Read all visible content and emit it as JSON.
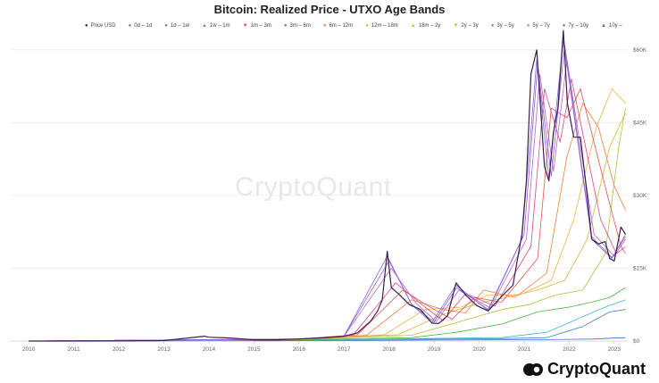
{
  "chart_data": {
    "type": "line",
    "title": "Bitcoin: Realized Price - UTXO Age Bands",
    "xlabel": "",
    "ylabel": "",
    "x_ticks": [
      "2010",
      "2011",
      "2012",
      "2013",
      "2014",
      "2015",
      "2016",
      "2017",
      "2018",
      "2019",
      "2020",
      "2021",
      "2022",
      "2023"
    ],
    "x_range": [
      2009.6,
      2023.3
    ],
    "ylim": [
      0,
      62000
    ],
    "y_ticks": [
      0,
      15000,
      30000,
      45000,
      60000
    ],
    "y_tick_labels": [
      "$0",
      "$15K",
      "$30K",
      "$45K",
      "$60K"
    ],
    "y_axis_side": "right",
    "grid": true,
    "legend_position": "top",
    "series": [
      {
        "name": "Price USD",
        "color": "#3b1d4e",
        "symbol": "●",
        "width": 1.2,
        "x": [
          2010,
          2011,
          2012,
          2013,
          2013.9,
          2014.0,
          2014.5,
          2015,
          2015.5,
          2016,
          2016.5,
          2017,
          2017.3,
          2017.6,
          2017.75,
          2017.85,
          2017.96,
          2018.05,
          2018.2,
          2018.45,
          2018.7,
          2018.95,
          2019.1,
          2019.3,
          2019.49,
          2019.7,
          2019.95,
          2020.2,
          2020.5,
          2020.75,
          2020.95,
          2021.05,
          2021.15,
          2021.28,
          2021.45,
          2021.55,
          2021.65,
          2021.75,
          2021.87,
          2021.96,
          2022.1,
          2022.25,
          2022.4,
          2022.5,
          2022.65,
          2022.8,
          2022.9,
          2023.0,
          2023.15,
          2023.25
        ],
        "y": [
          0,
          2,
          10,
          100,
          1000,
          800,
          600,
          250,
          260,
          420,
          650,
          1000,
          1700,
          4200,
          6300,
          8500,
          18500,
          11000,
          9800,
          7500,
          6500,
          3700,
          3600,
          5200,
          12000,
          9500,
          7300,
          6200,
          9200,
          11500,
          22000,
          33000,
          55000,
          60000,
          36000,
          33000,
          43000,
          48000,
          64000,
          49000,
          42000,
          42000,
          30000,
          21000,
          20000,
          20500,
          17000,
          16500,
          23500,
          22000
        ]
      },
      {
        "name": "0d – 1d",
        "color": "#7b6be0",
        "symbol": "●",
        "width": 0.8,
        "x": [
          2010,
          2016,
          2017,
          2017.96,
          2018.5,
          2018.95,
          2019.49,
          2020.2,
          2020.95,
          2021.28,
          2021.55,
          2021.87,
          2022.5,
          2022.95,
          2023.25
        ],
        "y": [
          0,
          420,
          1000,
          17500,
          7500,
          3800,
          11500,
          6300,
          21000,
          58000,
          33500,
          62000,
          21000,
          17000,
          22000
        ]
      },
      {
        "name": "1d – 1w",
        "color": "#9b59d0",
        "symbol": "●",
        "width": 0.8,
        "x": [
          2010,
          2016,
          2017,
          2018.0,
          2018.5,
          2019.0,
          2019.5,
          2020.2,
          2021.0,
          2021.3,
          2021.6,
          2021.9,
          2022.5,
          2022.95,
          2023.25
        ],
        "y": [
          0,
          420,
          1000,
          16500,
          7600,
          3900,
          11000,
          6500,
          22000,
          57000,
          34000,
          61000,
          21500,
          17200,
          21500
        ]
      },
      {
        "name": "1w – 1m",
        "color": "#b565c8",
        "symbol": "▲",
        "width": 0.8,
        "x": [
          2010,
          2016,
          2017,
          2018.05,
          2018.6,
          2019.05,
          2019.55,
          2020.25,
          2021.05,
          2021.35,
          2021.65,
          2021.95,
          2022.55,
          2023.0,
          2023.25
        ],
        "y": [
          0,
          410,
          950,
          15000,
          7800,
          4000,
          10500,
          6800,
          21000,
          55000,
          35000,
          58000,
          22000,
          17500,
          21000
        ]
      },
      {
        "name": "1m – 3m",
        "color": "#e0457b",
        "symbol": "▼",
        "width": 0.8,
        "x": [
          2010,
          2016,
          2017.2,
          2018.15,
          2018.8,
          2019.2,
          2019.7,
          2020.35,
          2021.15,
          2021.45,
          2021.8,
          2022.05,
          2022.7,
          2023.05,
          2023.25
        ],
        "y": [
          0,
          400,
          1200,
          12000,
          7000,
          4200,
          9800,
          7200,
          19500,
          52000,
          41000,
          54000,
          25000,
          18000,
          19500
        ]
      },
      {
        "name": "3m – 6m",
        "color": "#e84f4f",
        "symbol": "●",
        "width": 0.8,
        "x": [
          2010,
          2016,
          2017.3,
          2018.3,
          2019.0,
          2019.4,
          2019.9,
          2020.5,
          2021.3,
          2021.6,
          2021.95,
          2022.25,
          2022.85,
          2023.15,
          2023.25
        ],
        "y": [
          0,
          380,
          1300,
          10500,
          6500,
          4500,
          9000,
          8000,
          17000,
          48000,
          46000,
          52000,
          30000,
          19500,
          18000
        ]
      },
      {
        "name": "6m – 12m",
        "color": "#f27f3d",
        "symbol": "●",
        "width": 0.8,
        "x": [
          2010,
          2016,
          2017.5,
          2018.5,
          2019.2,
          2019.7,
          2020.1,
          2020.8,
          2021.5,
          2021.95,
          2022.3,
          2022.65,
          2023.0,
          2023.25
        ],
        "y": [
          0,
          360,
          1200,
          8500,
          6500,
          5800,
          10500,
          9000,
          14000,
          38000,
          49000,
          44000,
          32000,
          27000
        ]
      },
      {
        "name": "12m – 18m",
        "color": "#f5b041",
        "symbol": "●",
        "width": 0.8,
        "x": [
          2010,
          2016,
          2017.9,
          2018.8,
          2019.6,
          2020.2,
          2020.9,
          2021.6,
          2022.1,
          2022.6,
          2022.95,
          2023.25
        ],
        "y": [
          0,
          340,
          1300,
          6500,
          7000,
          9500,
          9500,
          12500,
          25000,
          44000,
          52000,
          49000
        ]
      },
      {
        "name": "18m – 2y",
        "color": "#d4b73a",
        "symbol": "▲",
        "width": 0.8,
        "x": [
          2010,
          2016,
          2018.2,
          2019.2,
          2020.0,
          2020.6,
          2021.3,
          2021.9,
          2022.4,
          2022.9,
          2023.25
        ],
        "y": [
          0,
          320,
          1300,
          5500,
          7800,
          9000,
          10500,
          12500,
          21000,
          40000,
          47000
        ]
      },
      {
        "name": "2y – 3y",
        "color": "#a8c43a",
        "symbol": "▼",
        "width": 0.8,
        "x": [
          2010,
          2016,
          2018.5,
          2019.5,
          2020.5,
          2021.1,
          2021.7,
          2022.3,
          2022.8,
          2023.1,
          2023.25
        ],
        "y": [
          0,
          300,
          1200,
          3800,
          6500,
          7500,
          9500,
          10500,
          18000,
          40000,
          48000
        ]
      },
      {
        "name": "3y – 5y",
        "color": "#3fb63f",
        "symbol": "●",
        "width": 0.8,
        "x": [
          2010,
          2016,
          2018.5,
          2019.5,
          2020.5,
          2021.3,
          2022.0,
          2022.5,
          2022.9,
          2023.25
        ],
        "y": [
          0,
          250,
          700,
          1800,
          3500,
          6000,
          7000,
          8000,
          9000,
          11000
        ]
      },
      {
        "name": "5y – 7y",
        "color": "#43b8c8",
        "symbol": "●",
        "width": 0.8,
        "x": [
          2010,
          2015,
          2017,
          2019,
          2020.5,
          2021.5,
          2022.3,
          2022.8,
          2023.25
        ],
        "y": [
          0,
          150,
          300,
          550,
          700,
          1800,
          5000,
          7000,
          8500
        ]
      },
      {
        "name": "7y – 10y",
        "color": "#3f7fd0",
        "symbol": "●",
        "width": 0.8,
        "x": [
          2010,
          2015,
          2017,
          2019,
          2020.5,
          2021.5,
          2022.3,
          2022.9,
          2023.25
        ],
        "y": [
          0,
          120,
          250,
          400,
          500,
          700,
          3000,
          6000,
          6500
        ]
      },
      {
        "name": "10y –",
        "color": "#3b6fd8",
        "symbol": "▲",
        "width": 0.8,
        "x": [
          2010,
          2015,
          2017,
          2019,
          2020.5,
          2021.5,
          2022.5,
          2023.0,
          2023.25
        ],
        "y": [
          0,
          50,
          100,
          200,
          250,
          300,
          400,
          600,
          700
        ]
      }
    ]
  },
  "watermark": "CryptoQuant",
  "brand": {
    "name": "CryptoQuant"
  }
}
